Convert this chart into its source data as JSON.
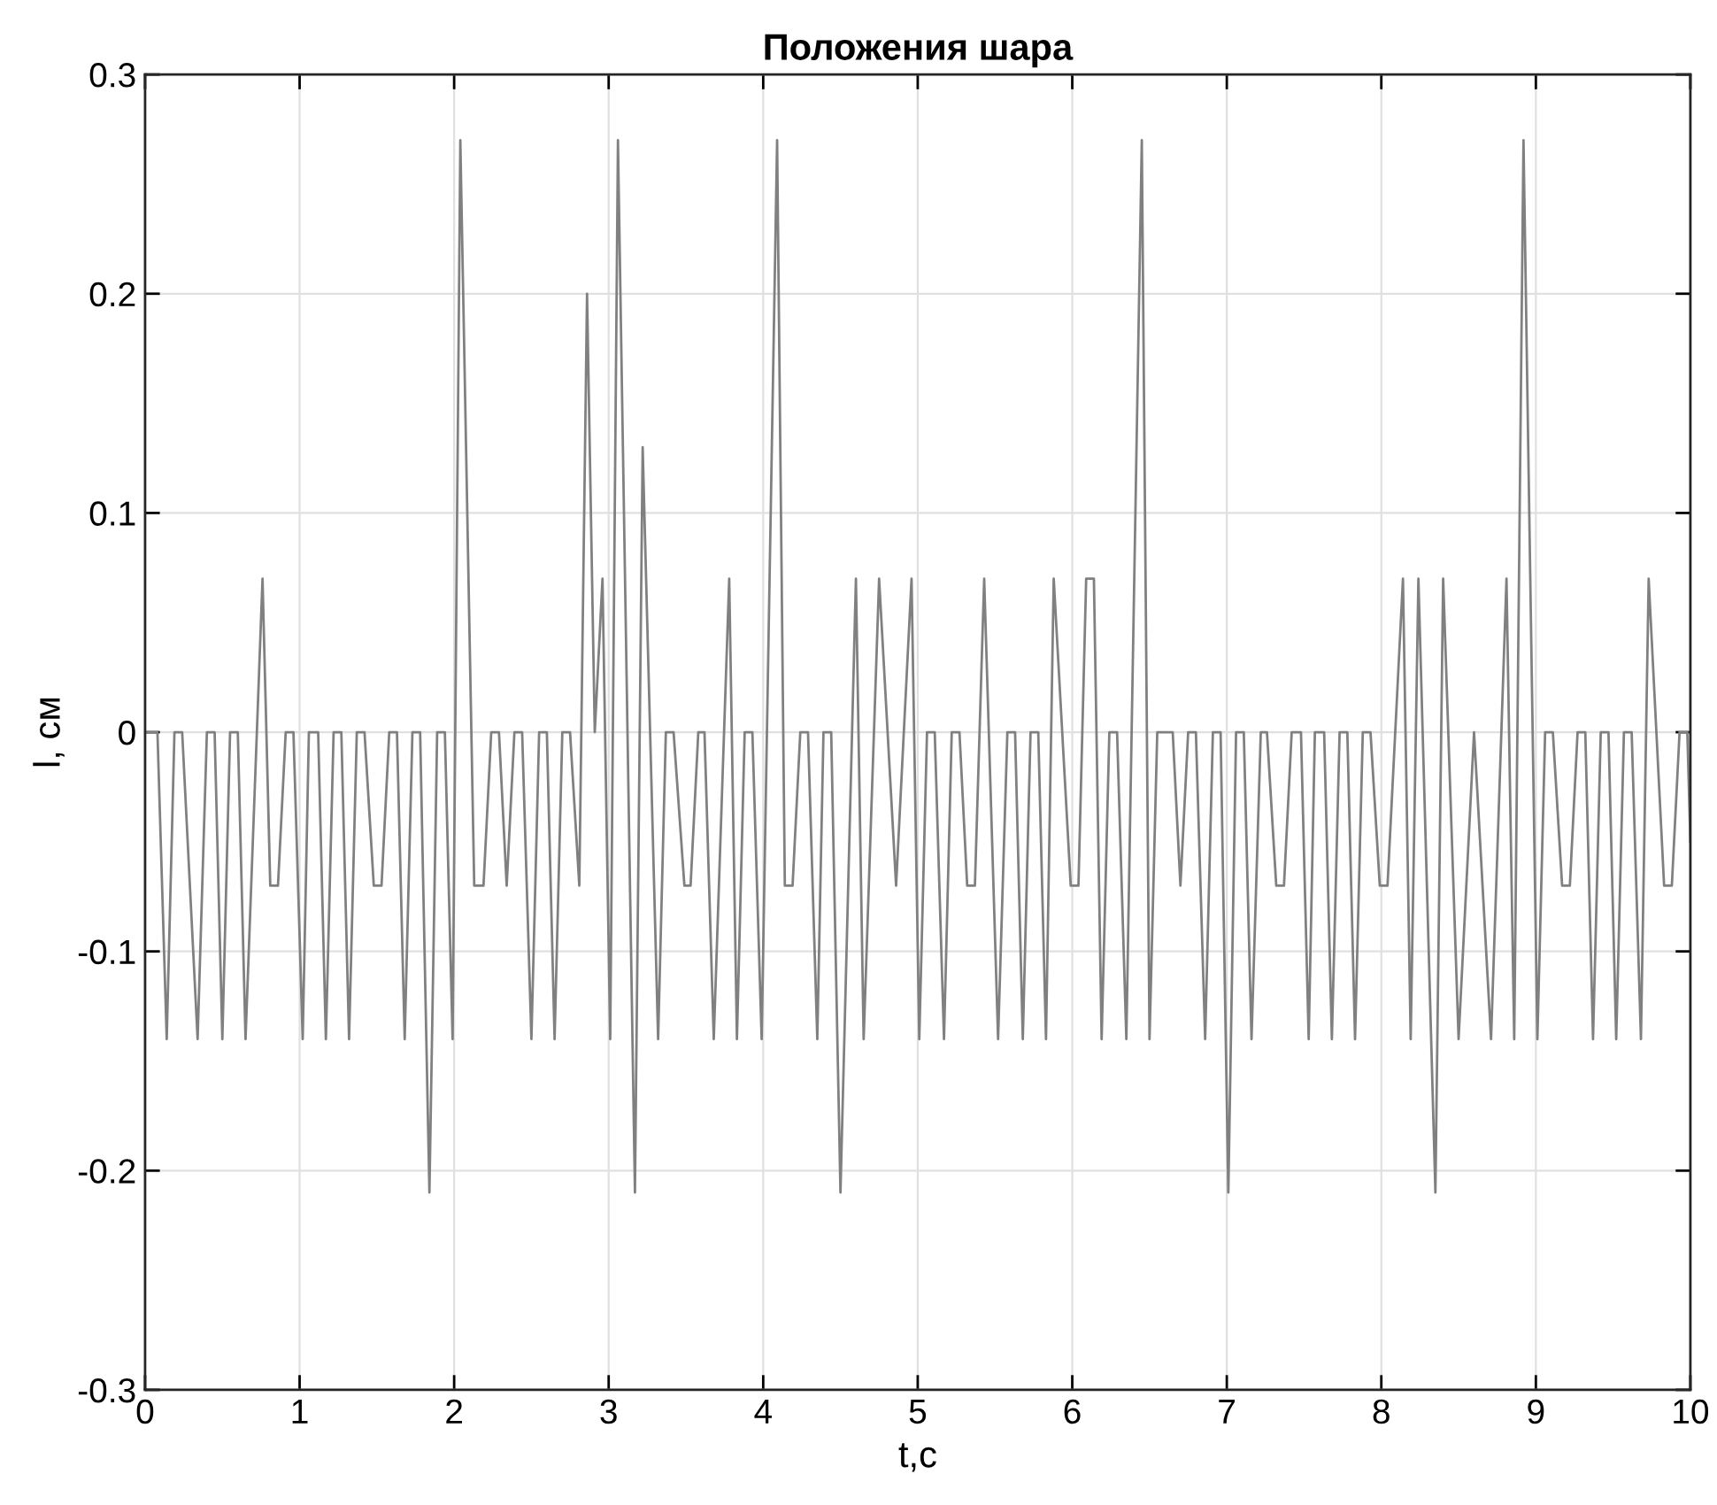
{
  "chart_data": {
    "type": "line",
    "title": "Положения шара",
    "xlabel": "t,c",
    "ylabel": "l, см",
    "xlim": [
      0,
      10
    ],
    "xticks": [
      0,
      1,
      2,
      3,
      4,
      5,
      6,
      7,
      8,
      9,
      10
    ],
    "ylim": [
      -0.3,
      0.3
    ],
    "yticks": [
      {
        "value": -0.3,
        "label": "-0.3"
      },
      {
        "value": -0.2,
        "label": "-0.2"
      },
      {
        "value": -0.1,
        "label": "-0.1"
      },
      0,
      0.1,
      0.2,
      0.3
    ],
    "grid": true,
    "marker": "none",
    "line_style": "solid",
    "series": [
      {
        "color": "#808080",
        "x": [
          0,
          0.08,
          0.14,
          0.19,
          0.24,
          0.34,
          0.4,
          0.45,
          0.5,
          0.55,
          0.6,
          0.65,
          0.76,
          0.81,
          0.86,
          0.91,
          0.96,
          1.02,
          1.06,
          1.12,
          1.17,
          1.22,
          1.27,
          1.32,
          1.37,
          1.42,
          1.48,
          1.53,
          1.58,
          1.63,
          1.68,
          1.73,
          1.78,
          1.84,
          1.89,
          1.94,
          1.99,
          2.04,
          2.13,
          2.19,
          2.24,
          2.29,
          2.34,
          2.39,
          2.44,
          2.5,
          2.55,
          2.6,
          2.65,
          2.7,
          2.75,
          2.81,
          2.86,
          2.91,
          2.96,
          3.01,
          3.06,
          3.17,
          3.22,
          3.32,
          3.37,
          3.42,
          3.49,
          3.53,
          3.58,
          3.62,
          3.68,
          3.78,
          3.83,
          3.88,
          3.93,
          3.99,
          4.09,
          4.14,
          4.19,
          4.24,
          4.29,
          4.35,
          4.39,
          4.44,
          4.5,
          4.6,
          4.65,
          4.75,
          4.86,
          4.96,
          5.01,
          5.06,
          5.11,
          5.17,
          5.22,
          5.27,
          5.32,
          5.37,
          5.43,
          5.52,
          5.58,
          5.63,
          5.68,
          5.73,
          5.78,
          5.83,
          5.88,
          5.99,
          6.04,
          6.09,
          6.14,
          6.19,
          6.24,
          6.29,
          6.35,
          6.45,
          6.5,
          6.55,
          6.65,
          6.7,
          6.75,
          6.8,
          6.86,
          6.91,
          6.96,
          7.01,
          7.06,
          7.11,
          7.16,
          7.22,
          7.26,
          7.32,
          7.37,
          7.42,
          7.48,
          7.53,
          7.57,
          7.63,
          7.68,
          7.73,
          7.78,
          7.83,
          7.88,
          7.93,
          7.99,
          8.04,
          8.14,
          8.19,
          8.24,
          8.35,
          8.4,
          8.5,
          8.6,
          8.71,
          8.81,
          8.86,
          8.92,
          9.01,
          9.06,
          9.11,
          9.17,
          9.22,
          9.27,
          9.32,
          9.37,
          9.42,
          9.47,
          9.52,
          9.57,
          9.62,
          9.68,
          9.73,
          9.83,
          9.88,
          9.93,
          9.98,
          10.0
        ],
        "values": [
          0,
          0,
          -0.14,
          0,
          0,
          -0.14,
          0,
          0,
          -0.14,
          0,
          0,
          -0.14,
          0.07,
          -0.07,
          -0.07,
          0,
          0,
          -0.14,
          0,
          0,
          -0.14,
          0,
          0,
          -0.14,
          0,
          0,
          -0.07,
          -0.07,
          0,
          0,
          -0.14,
          0,
          0,
          -0.21,
          0,
          0,
          -0.14,
          0.27,
          -0.07,
          -0.07,
          0,
          0,
          -0.07,
          0,
          0,
          -0.14,
          0,
          0,
          -0.14,
          0,
          0,
          -0.07,
          0.2,
          0,
          0.07,
          -0.14,
          0.27,
          -0.21,
          0.13,
          -0.14,
          0,
          0,
          -0.07,
          -0.07,
          0,
          0,
          -0.14,
          0.07,
          -0.14,
          0,
          0,
          -0.14,
          0.27,
          -0.07,
          -0.07,
          0,
          0,
          -0.14,
          0,
          0,
          -0.21,
          0.07,
          -0.14,
          0.07,
          -0.07,
          0.07,
          -0.14,
          0,
          0,
          -0.14,
          0,
          0,
          -0.07,
          -0.07,
          0.07,
          -0.14,
          0,
          0,
          -0.14,
          0,
          0,
          -0.14,
          0.07,
          -0.07,
          -0.07,
          0.07,
          0.07,
          -0.14,
          0,
          0,
          -0.14,
          0.27,
          -0.14,
          0,
          0,
          -0.07,
          0,
          0,
          -0.14,
          0,
          0,
          -0.21,
          0,
          0,
          -0.14,
          0,
          0,
          -0.07,
          -0.07,
          0,
          0,
          -0.14,
          0,
          0,
          -0.14,
          0,
          0,
          -0.14,
          0,
          0,
          -0.07,
          -0.07,
          0.07,
          -0.14,
          0.07,
          -0.21,
          0.07,
          -0.14,
          0,
          -0.14,
          0.07,
          -0.14,
          0.27,
          -0.14,
          0,
          0,
          -0.07,
          -0.07,
          0,
          0,
          -0.14,
          0,
          0,
          -0.14,
          0,
          0,
          -0.14,
          0.07,
          -0.07,
          -0.07,
          0,
          0,
          -0.05
        ]
      }
    ]
  }
}
